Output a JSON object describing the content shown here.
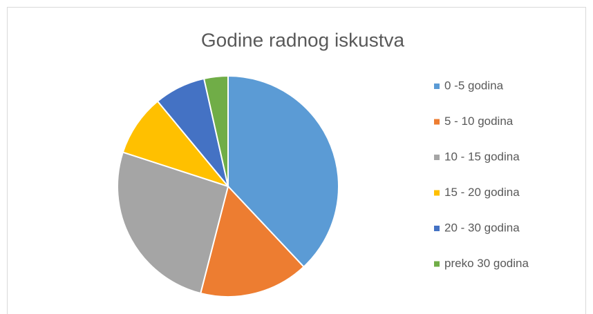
{
  "chart_data": {
    "type": "pie",
    "title": "Godine radnog iskustva",
    "categories": [
      "0 -5 godina",
      "5 - 10 godina",
      "10 - 15 godina",
      "15 - 20 godina",
      "20 - 30 godina",
      "preko 30 godina"
    ],
    "values": [
      38,
      16,
      26,
      9,
      7.5,
      3.5
    ],
    "colors": [
      "#5b9bd5",
      "#ed7d31",
      "#a5a5a5",
      "#ffc000",
      "#4472c4",
      "#70ad47"
    ],
    "legend": "right"
  }
}
